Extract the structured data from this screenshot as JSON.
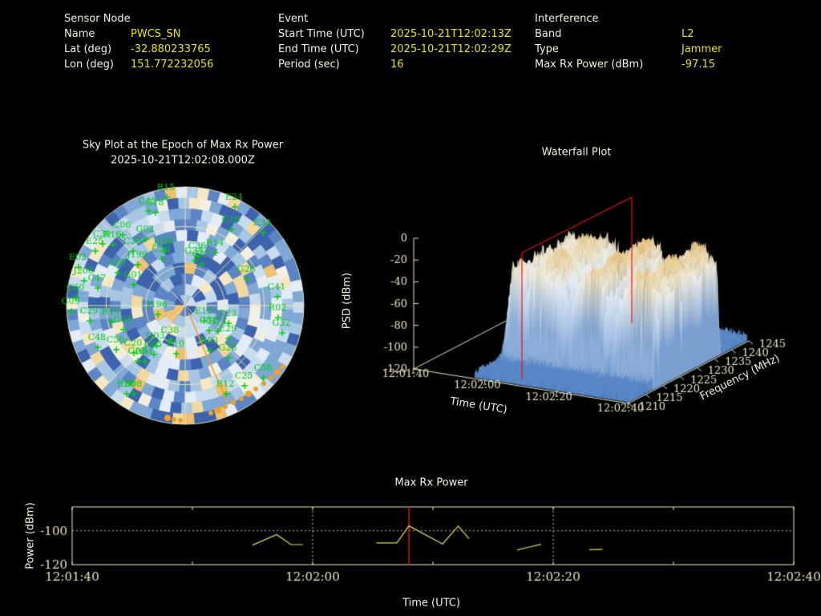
{
  "colors": {
    "background": "#000000",
    "text": "#f2f2dc",
    "value_yellow": "#e6e600",
    "satellite_green": "#00cc11",
    "axis_cream": "#e8e4c0",
    "series_yellow": "#e8e050",
    "epoch_red": "#ee1111",
    "track_orange": "#f0a028",
    "hline_gray": "#b8b8b8"
  },
  "header": {
    "sensor": {
      "title": "Sensor Node",
      "rows": [
        [
          "Name",
          "PWCS_SN"
        ],
        [
          "Lat (deg)",
          "-32.880233765"
        ],
        [
          "Lon (deg)",
          "151.772232056"
        ]
      ]
    },
    "event": {
      "title": "Event",
      "rows": [
        [
          "Start Time (UTC)",
          "2025-10-21T12:02:13Z"
        ],
        [
          "End Time (UTC)",
          "2025-10-21T12:02:29Z"
        ],
        [
          "Period (sec)",
          "16"
        ]
      ]
    },
    "interference": {
      "title": "Interference",
      "rows": [
        [
          "Band",
          "L2"
        ],
        [
          "Type",
          "Jammer"
        ],
        [
          "Max Rx Power (dBm)",
          "-97.15"
        ]
      ]
    }
  },
  "chart_data": [
    {
      "id": "sky_plot",
      "type": "polar_heatmap",
      "title": "Sky Plot at the Epoch of Max Rx Power",
      "subtitle": "2025-10-21T12:02:08.000Z",
      "grid": {
        "rings": 3,
        "spoke_step_deg": 45
      },
      "palette": [
        "#3e63ad",
        "#5b85c4",
        "#7fa8d6",
        "#a7c6e4",
        "#c9dcef",
        "#e4edf7",
        "#f2f0e3",
        "#f6e8c6",
        "#f3d8a0",
        "#eec06f"
      ],
      "palette_cum_weights": [
        0.13,
        0.28,
        0.45,
        0.6,
        0.72,
        0.8,
        0.86,
        0.92,
        0.97,
        1.0
      ],
      "satellites": [
        [
          "R15",
          207,
          233
        ],
        [
          "E24",
          292,
          245
        ],
        [
          "C45",
          184,
          250
        ],
        [
          "G18",
          193,
          252
        ],
        [
          "G16",
          288,
          273
        ],
        [
          "E33",
          327,
          277
        ],
        [
          "C06",
          152,
          280
        ],
        [
          "G02",
          181,
          285
        ],
        [
          "C30",
          127,
          291
        ],
        [
          "R16",
          140,
          292
        ],
        [
          "E25",
          118,
          300
        ],
        [
          "C39",
          165,
          300
        ],
        [
          "J195",
          204,
          300
        ],
        [
          "R14",
          268,
          302
        ],
        [
          "C36",
          246,
          306
        ],
        [
          "C50",
          201,
          310
        ],
        [
          "G34",
          242,
          312
        ],
        [
          "C37",
          251,
          316
        ],
        [
          "E02",
          97,
          320
        ],
        [
          "J199",
          171,
          317
        ],
        [
          "C03",
          146,
          327
        ],
        [
          "G26",
          307,
          335
        ],
        [
          "J200",
          104,
          337
        ],
        [
          "G01",
          166,
          342
        ],
        [
          "C47",
          121,
          346
        ],
        [
          "C41",
          345,
          357
        ],
        [
          "C60",
          94,
          358
        ],
        [
          "G09",
          88,
          375
        ],
        [
          "J196",
          196,
          379
        ],
        [
          "E12",
          254,
          387
        ],
        [
          "C29",
          111,
          387
        ],
        [
          "R19",
          138,
          388
        ],
        [
          "C23",
          284,
          390
        ],
        [
          "R02",
          346,
          383
        ],
        [
          "G04",
          153,
          398
        ],
        [
          "C51",
          260,
          399
        ],
        [
          "R13",
          271,
          400
        ],
        [
          "G32",
          351,
          402
        ],
        [
          "E29",
          284,
          409
        ],
        [
          "C38",
          212,
          411
        ],
        [
          "G03",
          194,
          418
        ],
        [
          "C48",
          121,
          420
        ],
        [
          "C56",
          144,
          423
        ],
        [
          "R03",
          261,
          424
        ],
        [
          "C20",
          166,
          427
        ],
        [
          "C05",
          191,
          429
        ],
        [
          "E10",
          219,
          428
        ],
        [
          "G28",
          284,
          433
        ],
        [
          "G05",
          171,
          437
        ],
        [
          "R04",
          180,
          438
        ],
        [
          "R20",
          157,
          478
        ],
        [
          "R08",
          166,
          478
        ],
        [
          "C58",
          328,
          458
        ],
        [
          "C25",
          304,
          468
        ],
        [
          "R12",
          281,
          478
        ]
      ],
      "track_line": [
        [
          236,
          390
        ],
        [
          243,
          408
        ],
        [
          251,
          427
        ],
        [
          259,
          446
        ],
        [
          267,
          464
        ],
        [
          276,
          483
        ],
        [
          284,
          501
        ]
      ],
      "track_dots": [
        [
          209,
          521
        ],
        [
          217,
          523
        ],
        [
          225,
          524
        ],
        [
          263,
          515
        ],
        [
          272,
          511
        ],
        [
          281,
          507
        ],
        [
          291,
          502
        ],
        [
          301,
          497
        ],
        [
          310,
          491
        ],
        [
          319,
          485
        ],
        [
          329,
          478
        ],
        [
          338,
          471
        ],
        [
          346,
          464
        ],
        [
          352,
          457
        ]
      ]
    },
    {
      "id": "waterfall",
      "type": "surface",
      "title": "Waterfall Plot",
      "zlabel": "PSD (dBm)",
      "z_ticks": [
        0,
        -20,
        -40,
        -60,
        -80,
        -100,
        -120
      ],
      "xlabel": "Time (UTC)",
      "x_tick_labels": [
        "12:01:40",
        "12:02:00",
        "12:02:20",
        "12:02:40"
      ],
      "ylabel": "Frequency (MHz)",
      "y_ticks": [
        1210,
        1215,
        1220,
        1225,
        1230,
        1235,
        1240,
        1245
      ],
      "t_span_sec": [
        0,
        60
      ],
      "f_span_mhz": [
        1210,
        1245
      ],
      "signal_band_mhz": [
        1217,
        1237
      ],
      "noise_floor_dbm": -113,
      "plateau_dbm": -31,
      "epoch_slice": "12:02:08",
      "epoch_sec": 28,
      "surface_t_start_sec": 17,
      "psd_colormap": [
        [
          -118,
          "#4a79bd"
        ],
        [
          -100,
          "#6f9cd2"
        ],
        [
          -85,
          "#93b7e0"
        ],
        [
          -70,
          "#b7d1ec"
        ],
        [
          -55,
          "#d4e4f4"
        ],
        [
          -42,
          "#e8f0f9"
        ],
        [
          -34,
          "#f3f2e9"
        ],
        [
          -27,
          "#f5e9cd"
        ],
        [
          -21,
          "#f2dcab"
        ],
        [
          -15,
          "#edc781"
        ]
      ]
    },
    {
      "id": "max_rx_power",
      "type": "line",
      "title": "Max Rx Power",
      "xlabel": "Time (UTC)",
      "ylabel": "Power (dBm)",
      "x_tick_labels": [
        "12:01:40",
        "12:02:00",
        "12:02:20",
        "12:02:40"
      ],
      "x_tick_sec": [
        0,
        20,
        40,
        60
      ],
      "minor_tick_sec": [
        10,
        30,
        50
      ],
      "gridline_sec": [
        20,
        40
      ],
      "y_ticks": [
        -100,
        -120
      ],
      "xlim_sec": [
        0,
        60
      ],
      "ylim": [
        -120,
        -86
      ],
      "hline_dbm": -100,
      "epoch_sec": 28,
      "segments": [
        [
          [
            15,
            -108.5
          ],
          [
            17,
            -102.3
          ],
          [
            18.2,
            -108.2
          ],
          [
            19.2,
            -108.2
          ]
        ],
        [
          [
            25.3,
            -107.2
          ],
          [
            27,
            -107.2
          ],
          [
            28,
            -97.15
          ],
          [
            30.8,
            -107.8
          ],
          [
            32.1,
            -97.3
          ],
          [
            33,
            -104.7
          ]
        ],
        [
          [
            37,
            -111.3
          ],
          [
            38,
            -109.6
          ],
          [
            39,
            -108.0
          ]
        ],
        [
          [
            43,
            -111.2
          ],
          [
            44.1,
            -111.0
          ]
        ]
      ]
    }
  ]
}
